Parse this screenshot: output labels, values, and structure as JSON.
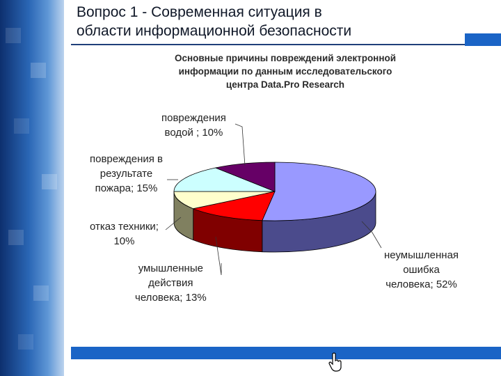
{
  "slide": {
    "title_line1": "Вопрос 1 - Современная ситуация в",
    "title_line2": "области информационной безопасности"
  },
  "chart_data": {
    "type": "pie",
    "title_lines": [
      "Основные причины повреждений электронной",
      "информации по данным исследовательского",
      "центра Data.Pro Research"
    ],
    "slices": [
      {
        "label_lines": [
          "неумышленная",
          "ошибка",
          "человека; 52%"
        ],
        "value": 52,
        "top_color": "#9999ff",
        "side_color": "#4b4b8c"
      },
      {
        "label_lines": [
          "умышленные",
          "действия",
          "человека; 13%"
        ],
        "value": 13,
        "top_color": "#ff0000",
        "side_color": "#800000"
      },
      {
        "label_lines": [
          "отказ техники;",
          "10%"
        ],
        "value": 10,
        "top_color": "#ffffcc",
        "side_color": "#808060"
      },
      {
        "label_lines": [
          "повреждения в",
          "результате",
          "пожара; 15%"
        ],
        "value": 15,
        "top_color": "#ccffff",
        "side_color": "#608080"
      },
      {
        "label_lines": [
          "повреждения",
          "водой ; 10%"
        ],
        "value": 10,
        "top_color": "#660066",
        "side_color": "#330033"
      }
    ]
  },
  "colors": {
    "accent": "#1a64c6",
    "band_dark": "#0d2f6e"
  },
  "icons": {
    "cursor": "hand-pointer-icon"
  }
}
